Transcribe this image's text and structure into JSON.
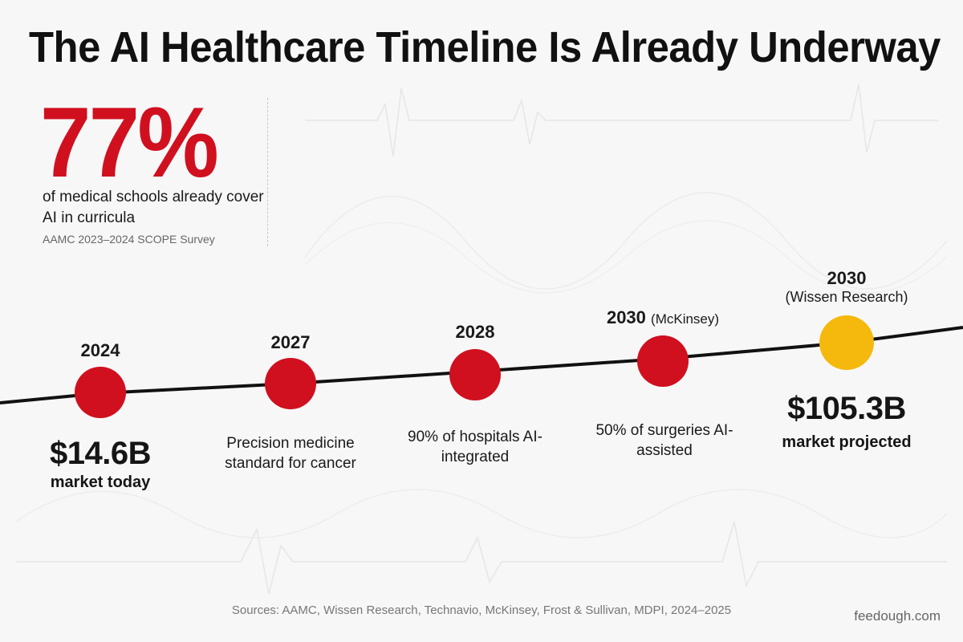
{
  "title": "The AI Healthcare Timeline Is Already Underway",
  "stat": {
    "value": "77%",
    "description": "of medical schools already cover AI in curricula",
    "source": "AAMC 2023–2024 SCOPE Survey"
  },
  "milestones": [
    {
      "year": "2024",
      "year_note": "",
      "amount": "$14.6B",
      "amount_caption": "market today",
      "description": "",
      "color": "#d0101f"
    },
    {
      "year": "2027",
      "year_note": "",
      "amount": "",
      "amount_caption": "",
      "description": "Precision medicine standard for cancer",
      "color": "#d0101f"
    },
    {
      "year": "2028",
      "year_note": "",
      "amount": "",
      "amount_caption": "",
      "description": "90% of hospitals AI-integrated",
      "color": "#d0101f"
    },
    {
      "year": "2030",
      "year_note": "(McKinsey)",
      "amount": "",
      "amount_caption": "",
      "description": "50% of surgeries AI-assisted",
      "color": "#d0101f"
    },
    {
      "year": "2030",
      "year_note": "(Wissen Research)",
      "amount": "$105.3B",
      "amount_caption": "market projected",
      "description": "",
      "color": "#f5b80c"
    }
  ],
  "colors": {
    "accent": "#d0101f",
    "highlight": "#f5b80c",
    "line": "#111111"
  },
  "footer": {
    "sources": "Sources: AAMC, Wissen Research, Technavio, McKinsey, Frost & Sullivan, MDPI, 2024–2025",
    "brand": "feedough.com"
  }
}
